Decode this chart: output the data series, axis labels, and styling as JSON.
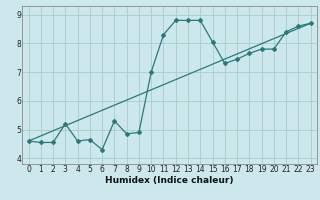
{
  "xlabel": "Humidex (Indice chaleur)",
  "bg_color": "#cce8ec",
  "grid_color": "#aacccc",
  "line_color": "#2a7a7a",
  "xlim": [
    -0.5,
    23.5
  ],
  "ylim": [
    3.8,
    9.3
  ],
  "xticks": [
    0,
    1,
    2,
    3,
    4,
    5,
    6,
    7,
    8,
    9,
    10,
    11,
    12,
    13,
    14,
    15,
    16,
    17,
    18,
    19,
    20,
    21,
    22,
    23
  ],
  "yticks": [
    4,
    5,
    6,
    7,
    8,
    9
  ],
  "curve1_x": [
    0,
    1,
    2,
    3,
    4,
    5,
    6,
    7,
    8,
    9,
    10,
    11,
    12,
    13,
    14,
    15,
    16,
    17,
    18,
    19,
    20,
    21,
    22,
    23
  ],
  "curve1_y": [
    4.6,
    4.55,
    4.55,
    5.2,
    4.6,
    4.65,
    4.3,
    5.3,
    4.85,
    4.9,
    7.0,
    8.3,
    8.8,
    8.8,
    8.8,
    8.05,
    7.3,
    7.45,
    7.65,
    7.8,
    7.8,
    8.4,
    8.6,
    8.7
  ],
  "trend_x": [
    0,
    23
  ],
  "trend_y": [
    4.6,
    8.7
  ]
}
